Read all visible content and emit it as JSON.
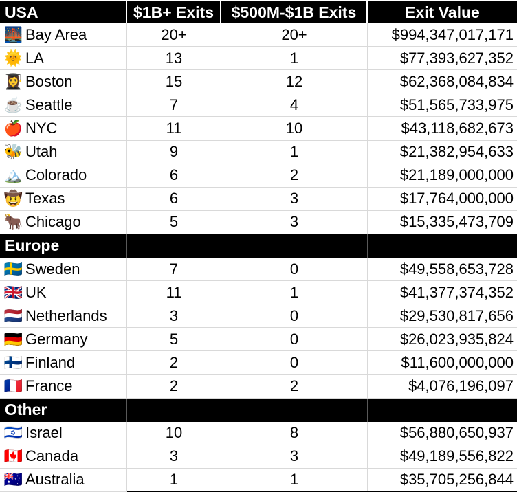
{
  "chart_data": {
    "type": "table",
    "columns": [
      "USA",
      "$1B+ Exits",
      "$500M-$1B Exits",
      "Exit Value"
    ],
    "sections": [
      {
        "label": "USA",
        "rows": [
          {
            "emoji": "🌉",
            "icon": "bridge-at-night-icon",
            "region": "Bay Area",
            "exits_1b": "20+",
            "exits_500m_1b": "20+",
            "exit_value": "$994,347,017,171"
          },
          {
            "emoji": "🌞",
            "icon": "sun-with-face-icon",
            "region": "LA",
            "exits_1b": "13",
            "exits_500m_1b": "1",
            "exit_value": "$77,393,627,352"
          },
          {
            "emoji": "👩‍🎓",
            "icon": "woman-graduate-icon",
            "region": "Boston",
            "exits_1b": "15",
            "exits_500m_1b": "12",
            "exit_value": "$62,368,084,834"
          },
          {
            "emoji": "☕",
            "icon": "coffee-icon",
            "region": "Seattle",
            "exits_1b": "7",
            "exits_500m_1b": "4",
            "exit_value": "$51,565,733,975"
          },
          {
            "emoji": "🍎",
            "icon": "red-apple-icon",
            "region": "NYC",
            "exits_1b": "11",
            "exits_500m_1b": "10",
            "exit_value": "$43,118,682,673"
          },
          {
            "emoji": "🐝",
            "icon": "honeybee-icon",
            "region": "Utah",
            "exits_1b": "9",
            "exits_500m_1b": "1",
            "exit_value": "$21,382,954,633"
          },
          {
            "emoji": "🏔️",
            "icon": "snow-capped-mountain-icon",
            "region": "Colorado",
            "exits_1b": "6",
            "exits_500m_1b": "2",
            "exit_value": "$21,189,000,000"
          },
          {
            "emoji": "🤠",
            "icon": "cowboy-hat-face-icon",
            "region": "Texas",
            "exits_1b": "6",
            "exits_500m_1b": "3",
            "exit_value": "$17,764,000,000"
          },
          {
            "emoji": "🐂",
            "icon": "ox-icon",
            "region": "Chicago",
            "exits_1b": "5",
            "exits_500m_1b": "3",
            "exit_value": "$15,335,473,709"
          }
        ]
      },
      {
        "label": "Europe",
        "rows": [
          {
            "emoji": "🇸🇪",
            "icon": "flag-sweden-icon",
            "region": "Sweden",
            "exits_1b": "7",
            "exits_500m_1b": "0",
            "exit_value": "$49,558,653,728"
          },
          {
            "emoji": "🇬🇧",
            "icon": "flag-uk-icon",
            "region": "UK",
            "exits_1b": "11",
            "exits_500m_1b": "1",
            "exit_value": "$41,377,374,352"
          },
          {
            "emoji": "🇳🇱",
            "icon": "flag-netherlands-icon",
            "region": "Netherlands",
            "exits_1b": "3",
            "exits_500m_1b": "0",
            "exit_value": "$29,530,817,656"
          },
          {
            "emoji": "🇩🇪",
            "icon": "flag-germany-icon",
            "region": "Germany",
            "exits_1b": "5",
            "exits_500m_1b": "0",
            "exit_value": "$26,023,935,824"
          },
          {
            "emoji": "🇫🇮",
            "icon": "flag-finland-icon",
            "region": "Finland",
            "exits_1b": "2",
            "exits_500m_1b": "0",
            "exit_value": "$11,600,000,000"
          },
          {
            "emoji": "🇫🇷",
            "icon": "flag-france-icon",
            "region": "France",
            "exits_1b": "2",
            "exits_500m_1b": "2",
            "exit_value": "$4,076,196,097"
          }
        ]
      },
      {
        "label": "Other",
        "rows": [
          {
            "emoji": "🇮🇱",
            "icon": "flag-israel-icon",
            "region": "Israel",
            "exits_1b": "10",
            "exits_500m_1b": "8",
            "exit_value": "$56,880,650,937"
          },
          {
            "emoji": "🇨🇦",
            "icon": "flag-canada-icon",
            "region": "Canada",
            "exits_1b": "3",
            "exits_500m_1b": "3",
            "exit_value": "$49,189,556,822"
          },
          {
            "emoji": "🇦🇺",
            "icon": "flag-australia-icon",
            "region": "Australia",
            "exits_1b": "1",
            "exits_500m_1b": "1",
            "exit_value": "$35,705,256,844"
          }
        ]
      }
    ]
  },
  "colors": {
    "header_bg": "#000000",
    "header_text": "#ffffff",
    "row_bg": "#ffffff",
    "row_text": "#000000",
    "gridline": "#d9d9d9"
  }
}
